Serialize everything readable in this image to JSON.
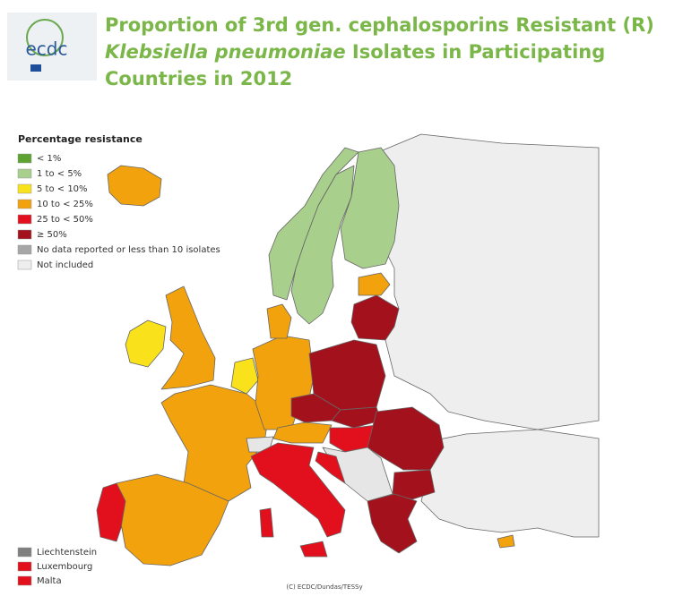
{
  "header": {
    "logo_text": "ecdc",
    "title": {
      "line1": "Proportion of 3rd gen. cephalosporins Resistant (R)",
      "italic": "Klebsiella pneumoniae",
      "line2_rest": " Isolates in Participating",
      "line3": "Countries in 2012"
    }
  },
  "legend": {
    "title": "Percentage resistance",
    "items": [
      {
        "label": "< 1%",
        "color": "#5ea232"
      },
      {
        "label": "1 to < 5%",
        "color": "#a8cf8c"
      },
      {
        "label": "5 to < 10%",
        "color": "#f9e11b"
      },
      {
        "label": "10 to < 25%",
        "color": "#f2a20c"
      },
      {
        "label": "25 to < 50%",
        "color": "#e2101d"
      },
      {
        "label": "≥ 50%",
        "color": "#a3121c"
      },
      {
        "label": "No data reported or less than 10 isolates",
        "color": "#a6a6a6"
      },
      {
        "label": "Not included",
        "color": "#eeeeee"
      }
    ]
  },
  "small_countries": {
    "items": [
      {
        "label": "Liechtenstein",
        "color": "#7f7f7f"
      },
      {
        "label": "Luxembourg",
        "color": "#e2101d"
      },
      {
        "label": "Malta",
        "color": "#e2101d"
      }
    ]
  },
  "credit": "(C) ECDC/Dundas/TESSy"
}
